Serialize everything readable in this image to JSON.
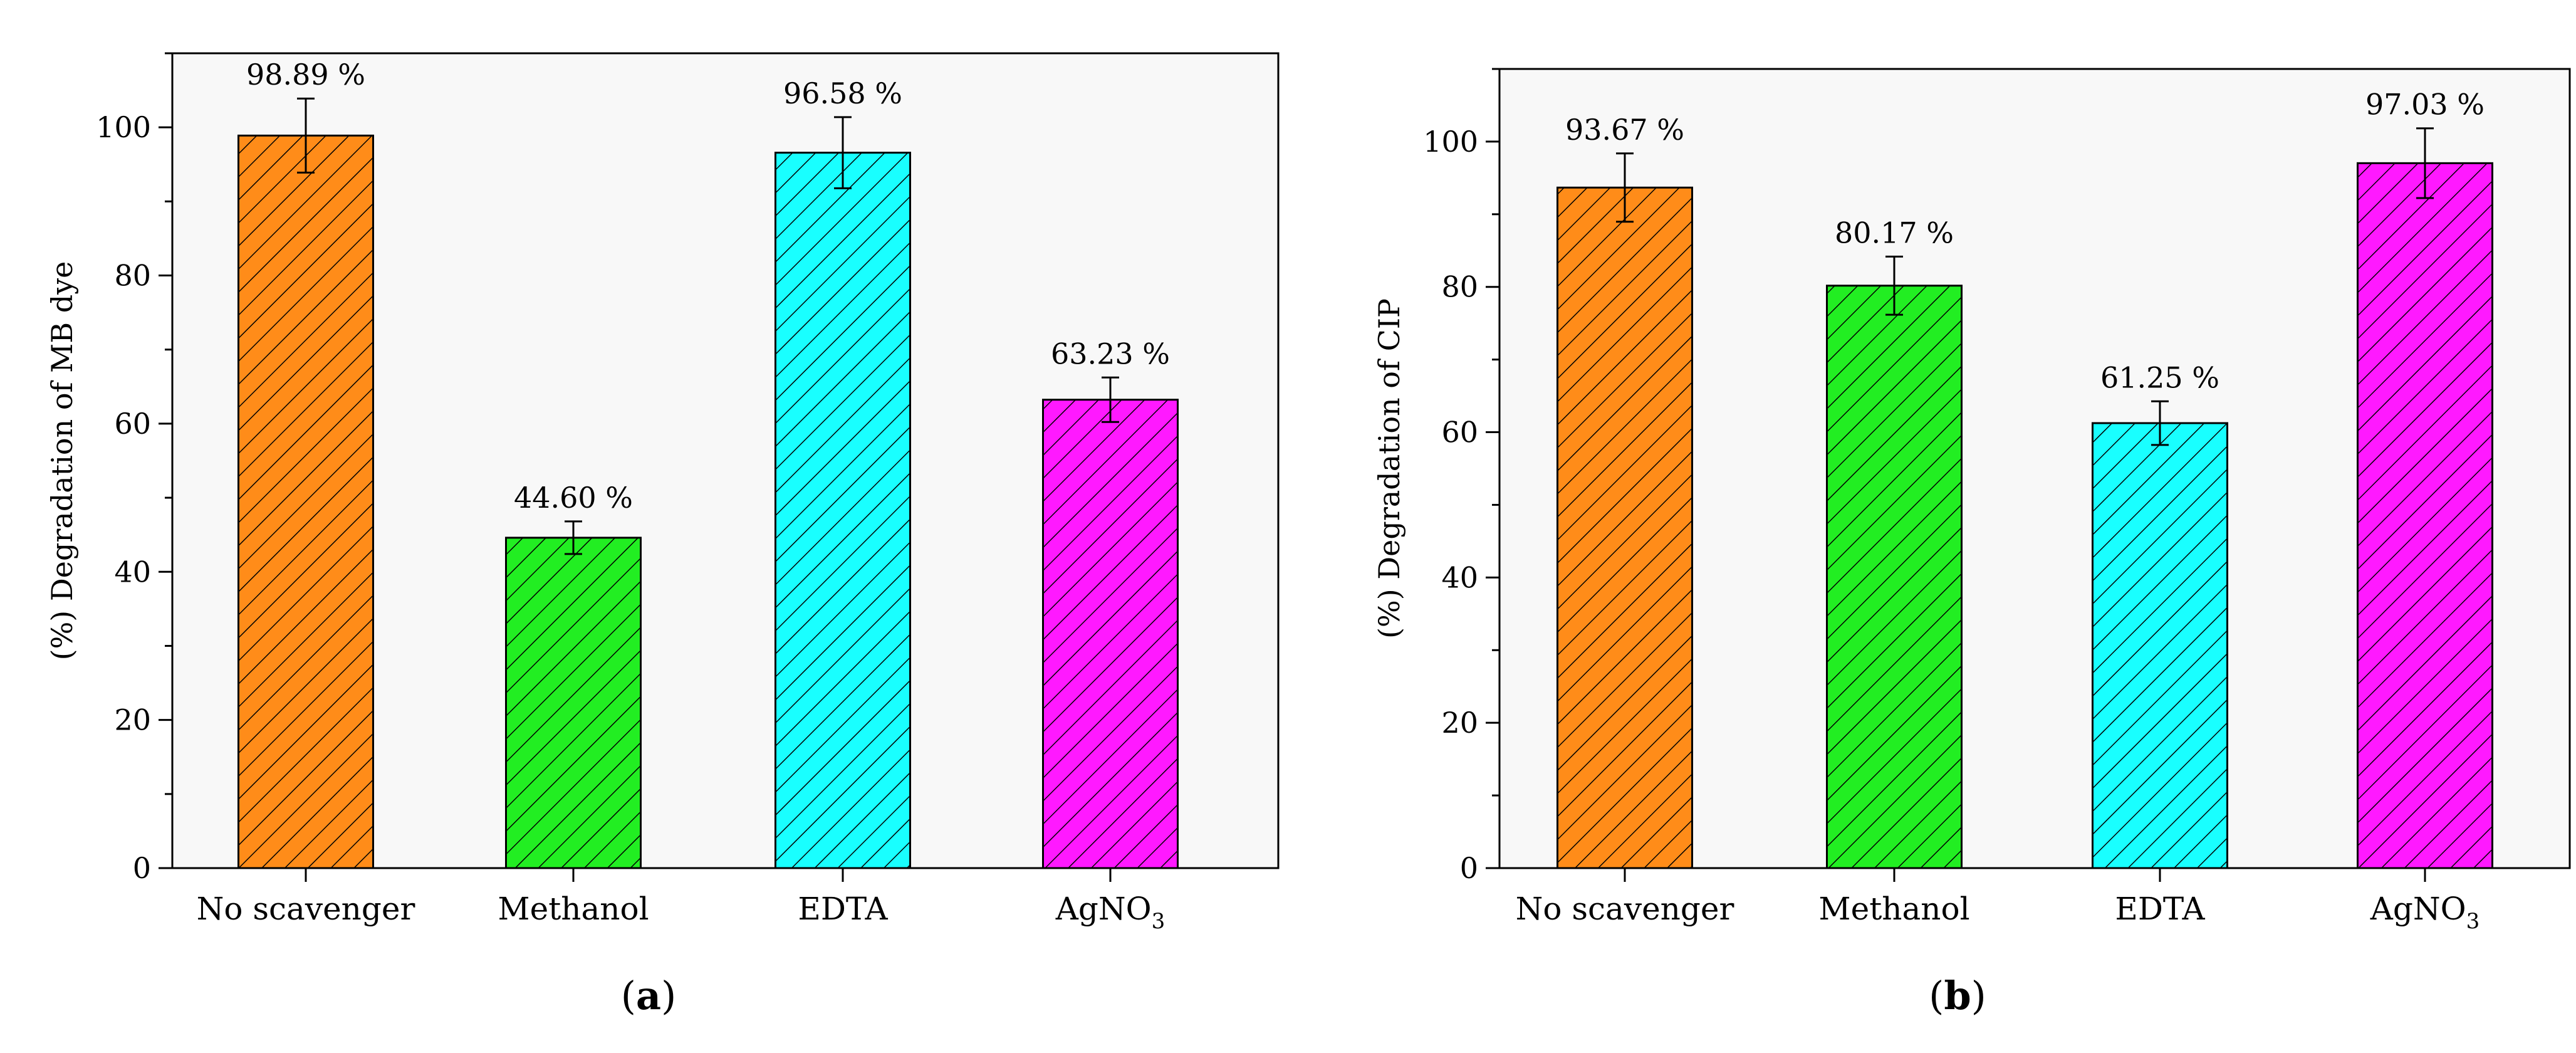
{
  "figure": {
    "panels": [
      {
        "label_prefix": "(",
        "label_letter": "a",
        "label_suffix": ")"
      },
      {
        "label_prefix": "(",
        "label_letter": "b",
        "label_suffix": ")"
      }
    ]
  },
  "chart_data": [
    {
      "type": "bar",
      "title": "",
      "xlabel": "",
      "ylabel": "(%) Degradation of MB dye",
      "ylim": [
        0,
        110
      ],
      "yticks": [
        0,
        20,
        40,
        60,
        80,
        100
      ],
      "grid": false,
      "categories": [
        "No scavenger",
        "Methanol",
        "EDTA",
        "AgNO3"
      ],
      "category_display": [
        {
          "main": "No scavenger",
          "sub": ""
        },
        {
          "main": "Methanol",
          "sub": ""
        },
        {
          "main": "EDTA",
          "sub": ""
        },
        {
          "main": "AgNO",
          "sub": "3"
        }
      ],
      "values": [
        98.89,
        44.6,
        96.58,
        63.23
      ],
      "errors": [
        5.0,
        2.2,
        4.8,
        3.0
      ],
      "data_labels": [
        "98.89 %",
        "44.60 %",
        "96.58 %",
        "63.23  %"
      ],
      "colors": [
        "#ff8c19",
        "#22ee22",
        "#19ffff",
        "#ff19ff"
      ]
    },
    {
      "type": "bar",
      "title": "",
      "xlabel": "",
      "ylabel": "(%) Degradation of CIP",
      "ylim": [
        0,
        110
      ],
      "yticks": [
        0,
        20,
        40,
        60,
        80,
        100
      ],
      "grid": false,
      "categories": [
        "No scavenger",
        "Methanol",
        "EDTA",
        "AgNO3"
      ],
      "category_display": [
        {
          "main": "No scavenger",
          "sub": ""
        },
        {
          "main": "Methanol",
          "sub": ""
        },
        {
          "main": "EDTA",
          "sub": ""
        },
        {
          "main": "AgNO",
          "sub": "3"
        }
      ],
      "values": [
        93.67,
        80.17,
        61.25,
        97.03
      ],
      "errors": [
        4.7,
        4.0,
        3.0,
        4.8
      ],
      "data_labels": [
        "93.67 %",
        "80.17 %",
        "61.25 %",
        "97.03  %"
      ],
      "colors": [
        "#ff8c19",
        "#22ee22",
        "#19ffff",
        "#ff19ff"
      ]
    }
  ]
}
